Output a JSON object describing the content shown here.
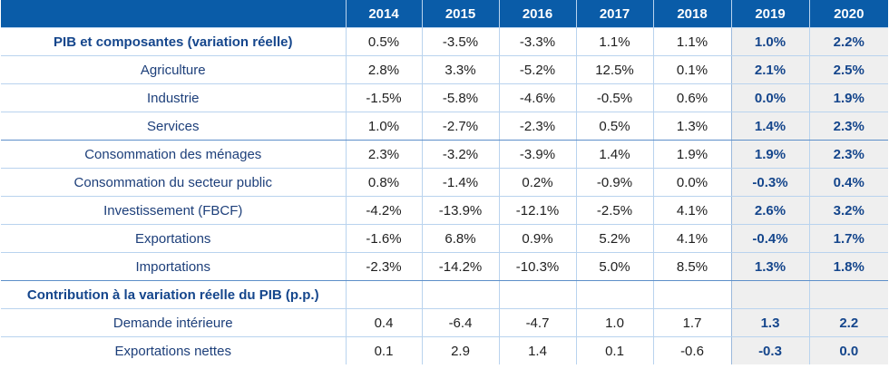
{
  "table": {
    "years": [
      "2014",
      "2015",
      "2016",
      "2017",
      "2018",
      "2019",
      "2020"
    ],
    "rows": [
      {
        "label": "PIB et composantes (variation réelle)",
        "section": true,
        "sep": false,
        "values": [
          "0.5%",
          "-3.5%",
          "-3.3%",
          "1.1%",
          "1.1%",
          "1.0%",
          "2.2%"
        ]
      },
      {
        "label": "Agriculture",
        "section": false,
        "sep": false,
        "values": [
          "2.8%",
          "3.3%",
          "-5.2%",
          "12.5%",
          "0.1%",
          "2.1%",
          "2.5%"
        ]
      },
      {
        "label": "Industrie",
        "section": false,
        "sep": false,
        "values": [
          "-1.5%",
          "-5.8%",
          "-4.6%",
          "-0.5%",
          "0.6%",
          "0.0%",
          "1.9%"
        ]
      },
      {
        "label": "Services",
        "section": false,
        "sep": true,
        "values": [
          "1.0%",
          "-2.7%",
          "-2.3%",
          "0.5%",
          "1.3%",
          "1.4%",
          "2.3%"
        ]
      },
      {
        "label": "Consommation des ménages",
        "section": false,
        "sep": false,
        "values": [
          "2.3%",
          "-3.2%",
          "-3.9%",
          "1.4%",
          "1.9%",
          "1.9%",
          "2.3%"
        ]
      },
      {
        "label": "Consommation du secteur public",
        "section": false,
        "sep": false,
        "values": [
          "0.8%",
          "-1.4%",
          "0.2%",
          "-0.9%",
          "0.0%",
          "-0.3%",
          "0.4%"
        ]
      },
      {
        "label": "Investissement (FBCF)",
        "section": false,
        "sep": false,
        "values": [
          "-4.2%",
          "-13.9%",
          "-12.1%",
          "-2.5%",
          "4.1%",
          "2.6%",
          "3.2%"
        ]
      },
      {
        "label": "Exportations",
        "section": false,
        "sep": false,
        "values": [
          "-1.6%",
          "6.8%",
          "0.9%",
          "5.2%",
          "4.1%",
          "-0.4%",
          "1.7%"
        ]
      },
      {
        "label": "Importations",
        "section": false,
        "sep": true,
        "values": [
          "-2.3%",
          "-14.2%",
          "-10.3%",
          "5.0%",
          "8.5%",
          "1.3%",
          "1.8%"
        ]
      },
      {
        "label": "Contribution à la variation réelle du PIB (p.p.)",
        "section": true,
        "sep": false,
        "values": [
          "",
          "",
          "",
          "",
          "",
          "",
          ""
        ]
      },
      {
        "label": "Demande intérieure",
        "section": false,
        "sep": false,
        "values": [
          "0.4",
          "-6.4",
          "-4.7",
          "1.0",
          "1.7",
          "1.3",
          "2.2"
        ]
      },
      {
        "label": "Exportations nettes",
        "section": false,
        "sep": false,
        "values": [
          "0.1",
          "2.9",
          "1.4",
          "0.1",
          "-0.6",
          "-0.3",
          "0.0"
        ]
      }
    ]
  },
  "colors": {
    "header_bg": "#0a5ca8",
    "header_text": "#ffffff",
    "label_text": "#1d3f7a",
    "forecast_bg": "#efefef",
    "grid": "#b9d3ee"
  }
}
